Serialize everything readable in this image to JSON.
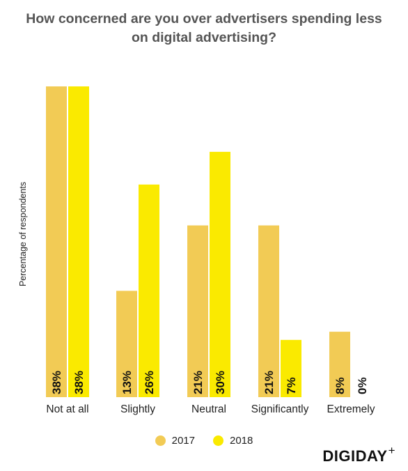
{
  "chart_data": {
    "type": "bar",
    "title_lines": [
      "How concerned are you over advertisers spending less",
      "on digital advertising?"
    ],
    "ylabel": "Percentage of respondents",
    "categories": [
      "Not at all",
      "Slightly",
      "Neutral",
      "Significantly",
      "Extremely"
    ],
    "series": [
      {
        "name": "2017",
        "color": "#F2CB55",
        "values": [
          38,
          13,
          21,
          21,
          8
        ]
      },
      {
        "name": "2018",
        "color": "#FAEA00",
        "values": [
          38,
          26,
          30,
          7,
          0
        ]
      }
    ],
    "value_suffix": "%",
    "ylim": [
      0,
      38
    ],
    "grid": false,
    "legend_position": "bottom"
  },
  "brand": {
    "name": "DIGIDAY",
    "mark": "+"
  }
}
